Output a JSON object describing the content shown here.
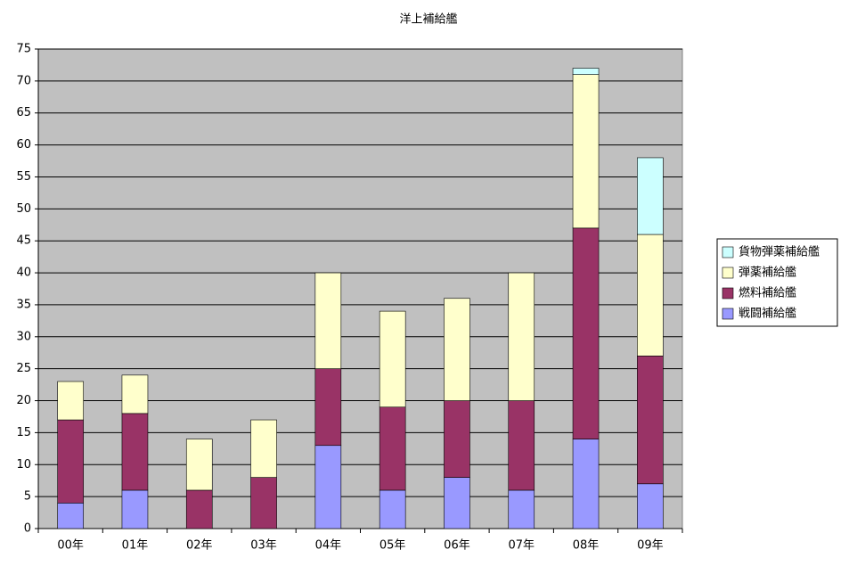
{
  "chart_data": {
    "type": "stacked-bar",
    "title": "洋上補給艦",
    "categories": [
      "00年",
      "01年",
      "02年",
      "03年",
      "04年",
      "05年",
      "06年",
      "07年",
      "08年",
      "09年"
    ],
    "series": [
      {
        "name": "戦闘補給艦",
        "color": "#9999ff",
        "values": [
          4,
          6,
          0,
          0,
          13,
          6,
          8,
          6,
          14,
          7
        ]
      },
      {
        "name": "燃料補給艦",
        "color": "#993366",
        "values": [
          13,
          12,
          6,
          8,
          12,
          13,
          12,
          14,
          33,
          20
        ]
      },
      {
        "name": "弾薬補給艦",
        "color": "#ffffcc",
        "values": [
          6,
          6,
          8,
          9,
          15,
          15,
          16,
          20,
          24,
          19
        ]
      },
      {
        "name": "貨物弾薬補給艦",
        "color": "#ccffff",
        "values": [
          0,
          0,
          0,
          0,
          0,
          0,
          0,
          0,
          1,
          12
        ]
      }
    ],
    "ylim": [
      0,
      75
    ],
    "yticks": [
      0,
      5,
      10,
      15,
      20,
      25,
      30,
      35,
      40,
      45,
      50,
      55,
      60,
      65,
      70,
      75
    ],
    "grid": true,
    "legend": "right",
    "background": "#c0c0c0"
  }
}
